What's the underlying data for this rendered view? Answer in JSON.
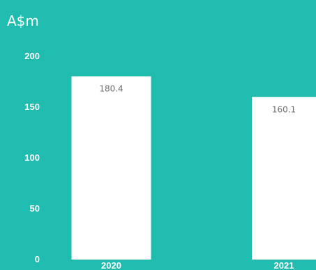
{
  "chart_data": {
    "type": "bar",
    "unit_label": "A$m",
    "categories": [
      "2020",
      "2021"
    ],
    "values": [
      180.4,
      160.1
    ],
    "value_labels": [
      "180.4",
      "160.1"
    ],
    "y_ticks": [
      0,
      50,
      100,
      150,
      200
    ],
    "ylim": [
      0,
      200
    ],
    "grid": false,
    "colors": {
      "background": "#21bcb0",
      "bar": "#ffffff",
      "value_label": "#6e6e6e",
      "axis_text": "#ffffff"
    }
  }
}
